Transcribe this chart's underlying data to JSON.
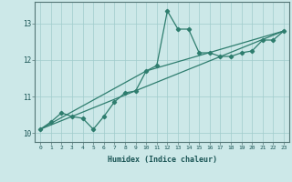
{
  "xlabel": "Humidex (Indice chaleur)",
  "x_values": [
    0,
    1,
    2,
    3,
    4,
    5,
    6,
    7,
    8,
    9,
    10,
    11,
    12,
    13,
    14,
    15,
    16,
    17,
    18,
    19,
    20,
    21,
    22,
    23
  ],
  "line1_y": [
    10.1,
    10.3,
    10.55,
    10.45,
    10.4,
    10.1,
    10.45,
    10.85,
    11.1,
    11.15,
    11.7,
    11.85,
    13.35,
    12.85,
    12.85,
    12.2,
    12.2,
    12.1,
    12.1,
    12.2,
    12.25,
    12.55,
    12.55,
    12.8
  ],
  "trend1_x": [
    0,
    23
  ],
  "trend1_y": [
    10.1,
    12.8
  ],
  "trend2_x": [
    0,
    10,
    23
  ],
  "trend2_y": [
    10.1,
    11.7,
    12.8
  ],
  "line_color": "#2e7d6e",
  "bg_color": "#cce8e8",
  "grid_color": "#a0cccc",
  "ylim": [
    9.75,
    13.6
  ],
  "xlim": [
    -0.5,
    23.5
  ],
  "yticks": [
    10,
    11,
    12,
    13
  ],
  "xticks": [
    0,
    1,
    2,
    3,
    4,
    5,
    6,
    7,
    8,
    9,
    10,
    11,
    12,
    13,
    14,
    15,
    16,
    17,
    18,
    19,
    20,
    21,
    22,
    23
  ]
}
